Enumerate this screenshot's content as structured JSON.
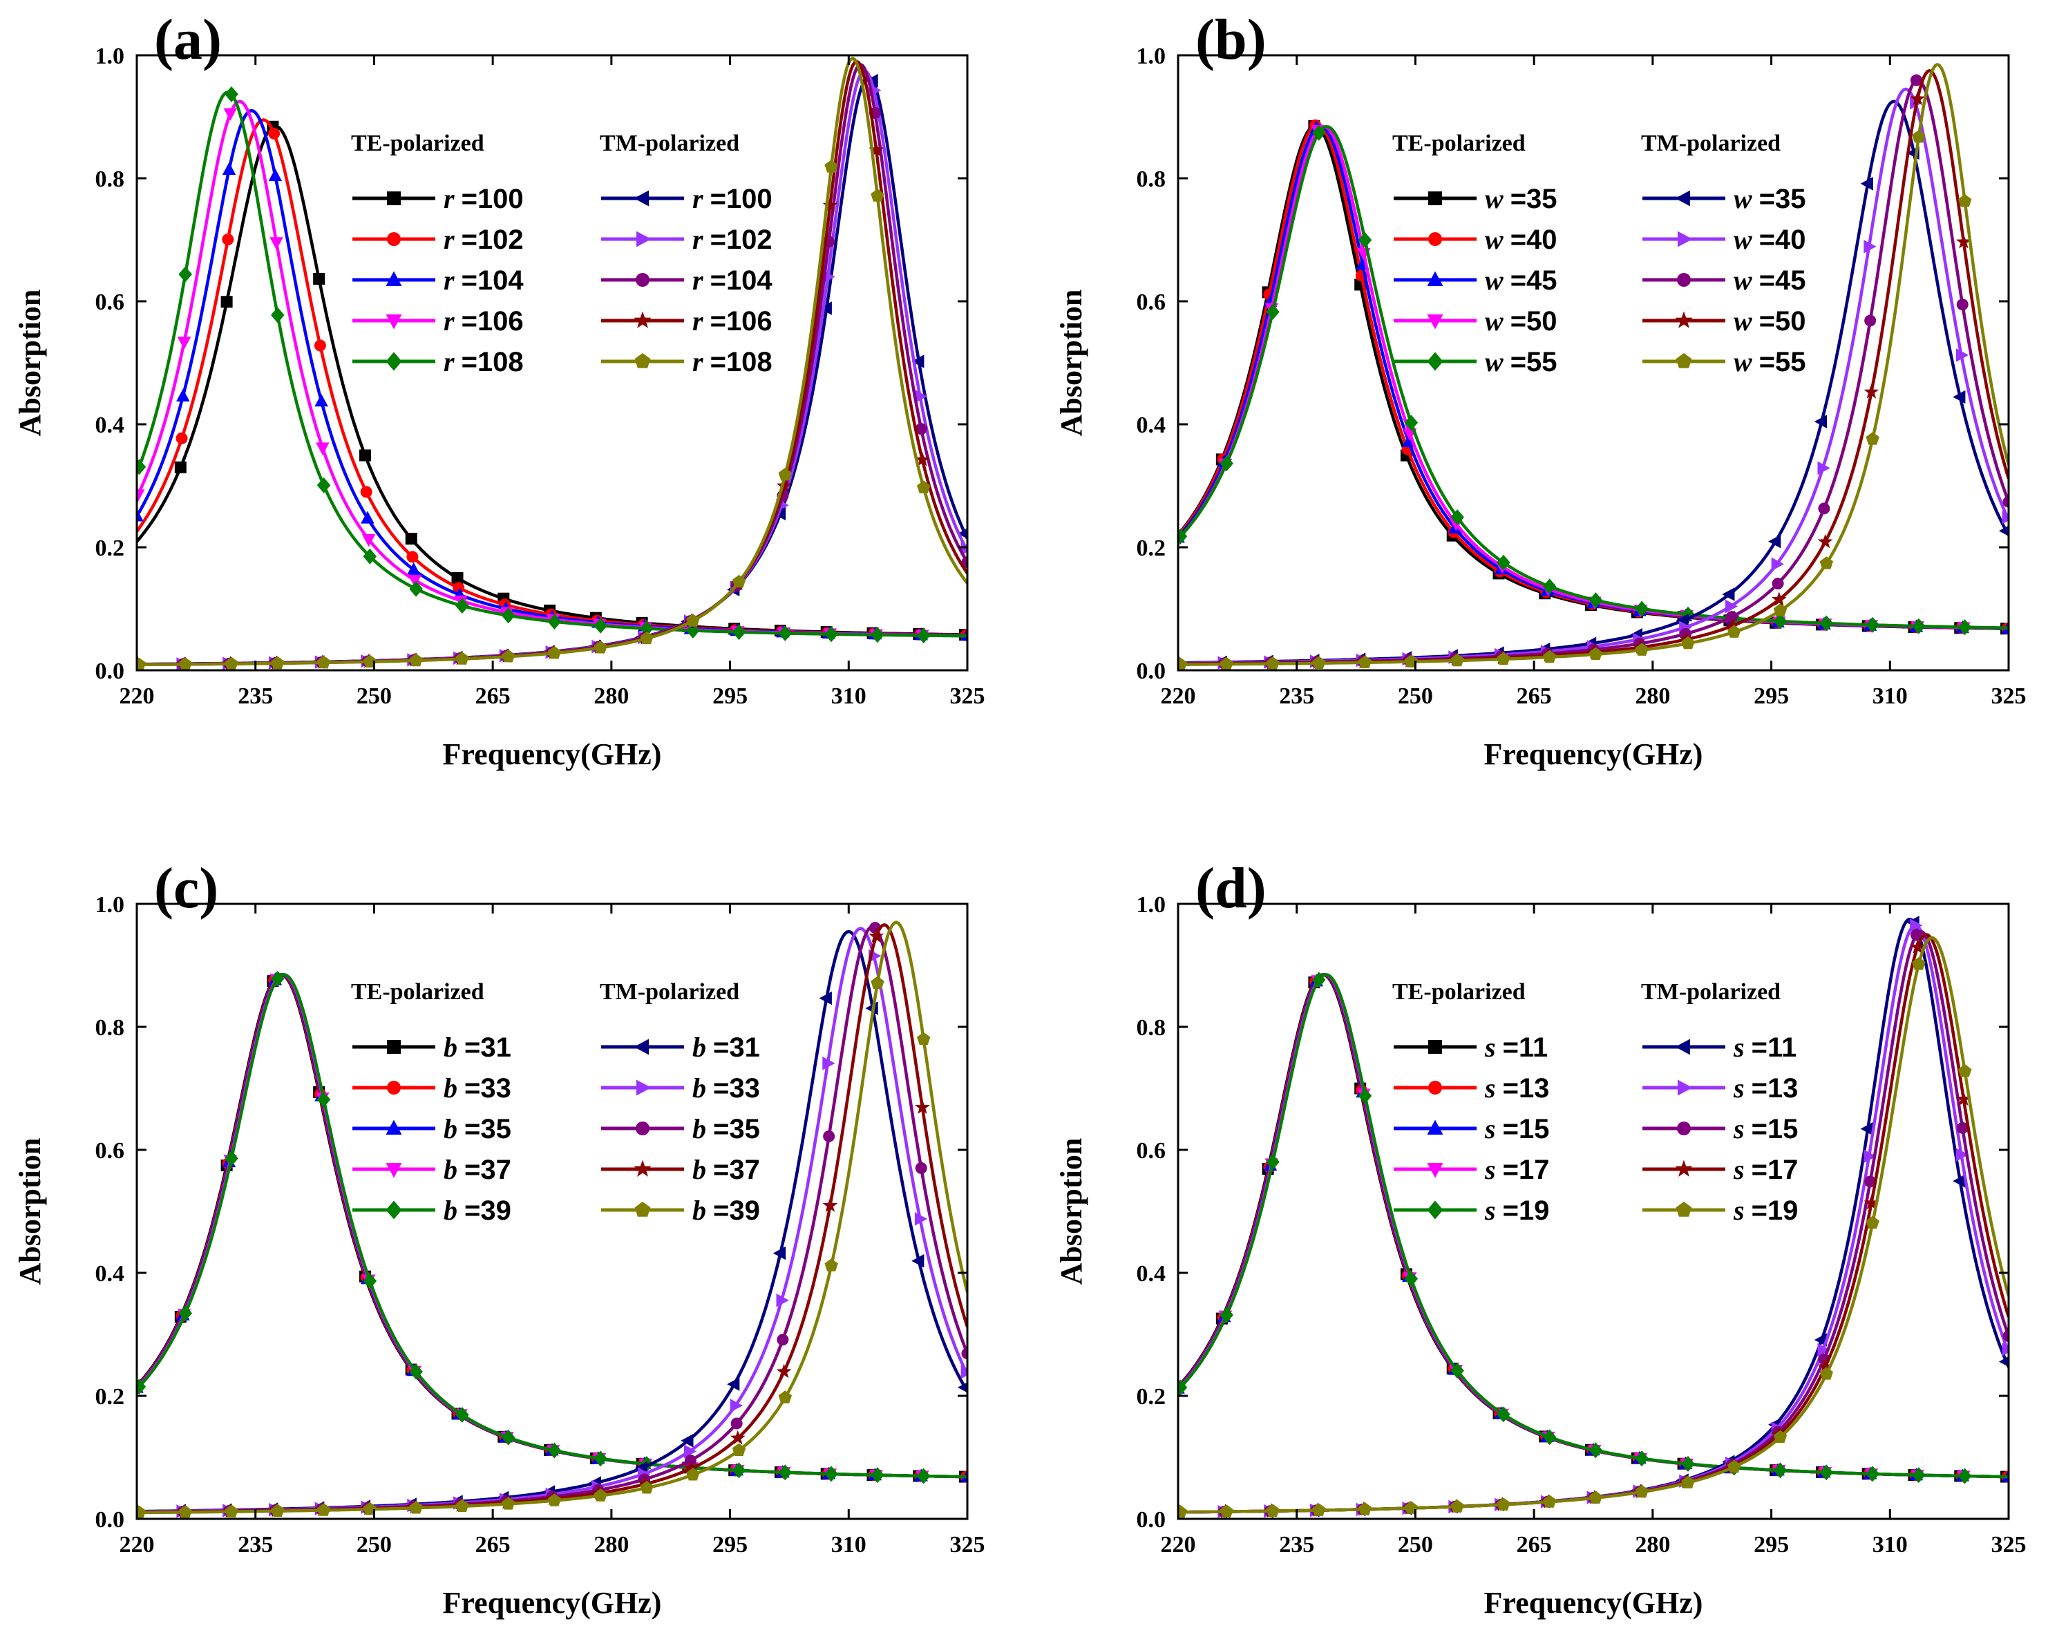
{
  "figure": {
    "colors": {
      "TE": [
        "#000000",
        "#ff0000",
        "#0000ff",
        "#ff00ff",
        "#008000"
      ],
      "TM": [
        "#000080",
        "#9933ff",
        "#800080",
        "#8b0000",
        "#808000"
      ]
    },
    "markers": {
      "TE": [
        "square",
        "circle",
        "triangle-up",
        "triangle-down",
        "diamond"
      ],
      "TM": [
        "triangle-left",
        "triangle-right",
        "circle",
        "star",
        "pentagon"
      ]
    }
  },
  "chart_data": [
    {
      "type": "line",
      "panel_label": "(a)",
      "xlabel": "Frequency(GHz)",
      "ylabel": "Absorption",
      "xlim": [
        220,
        325
      ],
      "ylim": [
        0,
        1
      ],
      "xticks": [
        "220",
        "235",
        "250",
        "265",
        "280",
        "295",
        "310",
        "325"
      ],
      "yticks": [
        "0.0",
        "0.2",
        "0.4",
        "0.6",
        "0.8",
        "1.0"
      ],
      "variable": "r",
      "legend_groups": [
        "TE-polarized",
        "TM-polarized"
      ],
      "series": [
        {
          "name": "TE r =100",
          "group": "TE",
          "label": "=100",
          "peak_x": 237.5,
          "peak_y": 0.885,
          "gamma": 8.5,
          "base": 0.05
        },
        {
          "name": "TE r =102",
          "group": "TE",
          "label": "=102",
          "peak_x": 236.0,
          "peak_y": 0.895,
          "gamma": 8.2,
          "base": 0.05
        },
        {
          "name": "TE r =104",
          "group": "TE",
          "label": "=104",
          "peak_x": 234.5,
          "peak_y": 0.91,
          "gamma": 8.0,
          "base": 0.05
        },
        {
          "name": "TE r =106",
          "group": "TE",
          "label": "=106",
          "peak_x": 233.0,
          "peak_y": 0.925,
          "gamma": 7.8,
          "base": 0.05
        },
        {
          "name": "TE r =108",
          "group": "TE",
          "label": "=108",
          "peak_x": 231.5,
          "peak_y": 0.94,
          "gamma": 7.6,
          "base": 0.05
        },
        {
          "name": "TM r =100",
          "group": "TM",
          "label": "=100",
          "peak_x": 312.5,
          "peak_y": 0.965,
          "gamma": 6.6,
          "base": 0.005
        },
        {
          "name": "TM r =102",
          "group": "TM",
          "label": "=102",
          "peak_x": 312.0,
          "peak_y": 0.975,
          "gamma": 6.4,
          "base": 0.005
        },
        {
          "name": "TM r =104",
          "group": "TM",
          "label": "=104",
          "peak_x": 311.5,
          "peak_y": 0.985,
          "gamma": 6.2,
          "base": 0.005
        },
        {
          "name": "TM r =106",
          "group": "TM",
          "label": "=106",
          "peak_x": 311.0,
          "peak_y": 0.99,
          "gamma": 6.0,
          "base": 0.005
        },
        {
          "name": "TM r =108",
          "group": "TM",
          "label": "=108",
          "peak_x": 310.5,
          "peak_y": 0.995,
          "gamma": 5.8,
          "base": 0.005
        }
      ]
    },
    {
      "type": "line",
      "panel_label": "(b)",
      "xlabel": "Frequency(GHz)",
      "ylabel": "Absorption",
      "xlim": [
        220,
        325
      ],
      "ylim": [
        0,
        1
      ],
      "xticks": [
        "220",
        "235",
        "250",
        "265",
        "280",
        "295",
        "310",
        "325"
      ],
      "yticks": [
        "0.0",
        "0.2",
        "0.4",
        "0.6",
        "0.8",
        "1.0"
      ],
      "variable": "w",
      "legend_groups": [
        "TE-polarized",
        "TM-polarized"
      ],
      "series": [
        {
          "name": "TE w =35",
          "group": "TE",
          "label": "=35",
          "peak_x": 237.3,
          "peak_y": 0.885,
          "gamma": 8.5,
          "base": 0.06
        },
        {
          "name": "TE w =40",
          "group": "TE",
          "label": "=40",
          "peak_x": 237.6,
          "peak_y": 0.887,
          "gamma": 8.6,
          "base": 0.06
        },
        {
          "name": "TE w =45",
          "group": "TE",
          "label": "=45",
          "peak_x": 238.0,
          "peak_y": 0.885,
          "gamma": 8.7,
          "base": 0.06
        },
        {
          "name": "TE w =50",
          "group": "TE",
          "label": "=50",
          "peak_x": 238.4,
          "peak_y": 0.884,
          "gamma": 8.8,
          "base": 0.06
        },
        {
          "name": "TE w =55",
          "group": "TE",
          "label": "=55",
          "peak_x": 238.8,
          "peak_y": 0.884,
          "gamma": 9.0,
          "base": 0.06
        },
        {
          "name": "TM w =35",
          "group": "TM",
          "label": "=35",
          "peak_x": 310.5,
          "peak_y": 0.925,
          "gamma": 8.0,
          "base": 0.005
        },
        {
          "name": "TM w =40",
          "group": "TM",
          "label": "=40",
          "peak_x": 312.0,
          "peak_y": 0.945,
          "gamma": 7.6,
          "base": 0.005
        },
        {
          "name": "TM w =45",
          "group": "TM",
          "label": "=45",
          "peak_x": 313.5,
          "peak_y": 0.96,
          "gamma": 7.2,
          "base": 0.005
        },
        {
          "name": "TM w =50",
          "group": "TM",
          "label": "=50",
          "peak_x": 315.0,
          "peak_y": 0.975,
          "gamma": 6.8,
          "base": 0.005
        },
        {
          "name": "TM w =55",
          "group": "TM",
          "label": "=55",
          "peak_x": 316.0,
          "peak_y": 0.985,
          "gamma": 6.4,
          "base": 0.005
        }
      ]
    },
    {
      "type": "line",
      "panel_label": "(c)",
      "xlabel": "Frequency(GHz)",
      "ylabel": "Absorption",
      "xlim": [
        220,
        325
      ],
      "ylim": [
        0,
        1
      ],
      "xticks": [
        "220",
        "235",
        "250",
        "265",
        "280",
        "295",
        "310",
        "325"
      ],
      "yticks": [
        "0.0",
        "0.2",
        "0.4",
        "0.6",
        "0.8",
        "1.0"
      ],
      "variable": "b",
      "legend_groups": [
        "TE-polarized",
        "TM-polarized"
      ],
      "series": [
        {
          "name": "TE b =31",
          "group": "TE",
          "label": "=31",
          "peak_x": 238.2,
          "peak_y": 0.885,
          "gamma": 8.8,
          "base": 0.06
        },
        {
          "name": "TE b =33",
          "group": "TE",
          "label": "=33",
          "peak_x": 238.3,
          "peak_y": 0.885,
          "gamma": 8.8,
          "base": 0.06
        },
        {
          "name": "TE b =35",
          "group": "TE",
          "label": "=35",
          "peak_x": 238.4,
          "peak_y": 0.885,
          "gamma": 8.8,
          "base": 0.06
        },
        {
          "name": "TE b =37",
          "group": "TE",
          "label": "=37",
          "peak_x": 238.5,
          "peak_y": 0.885,
          "gamma": 8.8,
          "base": 0.06
        },
        {
          "name": "TE b =39",
          "group": "TE",
          "label": "=39",
          "peak_x": 238.6,
          "peak_y": 0.885,
          "gamma": 8.8,
          "base": 0.06
        },
        {
          "name": "TM b =31",
          "group": "TM",
          "label": "=31",
          "peak_x": 310.0,
          "peak_y": 0.955,
          "gamma": 7.8,
          "base": 0.005
        },
        {
          "name": "TM b =33",
          "group": "TM",
          "label": "=33",
          "peak_x": 311.5,
          "peak_y": 0.96,
          "gamma": 7.6,
          "base": 0.005
        },
        {
          "name": "TM b =35",
          "group": "TM",
          "label": "=35",
          "peak_x": 313.0,
          "peak_y": 0.963,
          "gamma": 7.4,
          "base": 0.005
        },
        {
          "name": "TM b =37",
          "group": "TM",
          "label": "=37",
          "peak_x": 314.5,
          "peak_y": 0.966,
          "gamma": 7.2,
          "base": 0.005
        },
        {
          "name": "TM b =39",
          "group": "TM",
          "label": "=39",
          "peak_x": 316.0,
          "peak_y": 0.97,
          "gamma": 7.0,
          "base": 0.005
        }
      ]
    },
    {
      "type": "line",
      "panel_label": "(d)",
      "xlabel": "Frequency(GHz)",
      "ylabel": "Absorption",
      "xlim": [
        220,
        325
      ],
      "ylim": [
        0,
        1
      ],
      "xticks": [
        "220",
        "235",
        "250",
        "265",
        "280",
        "295",
        "310",
        "325"
      ],
      "yticks": [
        "0.0",
        "0.2",
        "0.4",
        "0.6",
        "0.8",
        "1.0"
      ],
      "variable": "s",
      "legend_groups": [
        "TE-polarized",
        "TM-polarized"
      ],
      "series": [
        {
          "name": "TE s =11",
          "group": "TE",
          "label": "=11",
          "peak_x": 238.3,
          "peak_y": 0.885,
          "gamma": 8.8,
          "base": 0.06
        },
        {
          "name": "TE s =13",
          "group": "TE",
          "label": "=13",
          "peak_x": 238.4,
          "peak_y": 0.885,
          "gamma": 8.8,
          "base": 0.06
        },
        {
          "name": "TE s =15",
          "group": "TE",
          "label": "=15",
          "peak_x": 238.5,
          "peak_y": 0.885,
          "gamma": 8.8,
          "base": 0.06
        },
        {
          "name": "TE s =17",
          "group": "TE",
          "label": "=17",
          "peak_x": 238.6,
          "peak_y": 0.885,
          "gamma": 8.8,
          "base": 0.06
        },
        {
          "name": "TE s =19",
          "group": "TE",
          "label": "=19",
          "peak_x": 238.7,
          "peak_y": 0.885,
          "gamma": 8.8,
          "base": 0.06
        },
        {
          "name": "TM s =11",
          "group": "TM",
          "label": "=11",
          "peak_x": 312.5,
          "peak_y": 0.975,
          "gamma": 7.2,
          "base": 0.005
        },
        {
          "name": "TM s =13",
          "group": "TM",
          "label": "=13",
          "peak_x": 313.2,
          "peak_y": 0.965,
          "gamma": 7.3,
          "base": 0.005
        },
        {
          "name": "TM s =15",
          "group": "TM",
          "label": "=15",
          "peak_x": 313.9,
          "peak_y": 0.955,
          "gamma": 7.4,
          "base": 0.005
        },
        {
          "name": "TM s =17",
          "group": "TM",
          "label": "=17",
          "peak_x": 314.6,
          "peak_y": 0.95,
          "gamma": 7.5,
          "base": 0.005
        },
        {
          "name": "TM s =19",
          "group": "TM",
          "label": "=19",
          "peak_x": 315.3,
          "peak_y": 0.945,
          "gamma": 7.6,
          "base": 0.005
        }
      ]
    }
  ]
}
